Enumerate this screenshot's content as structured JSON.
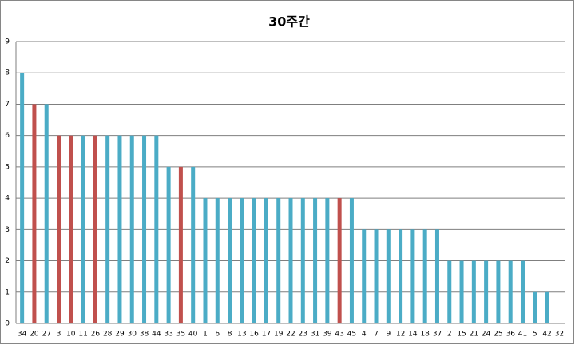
{
  "chart_data": {
    "type": "bar",
    "title": "30주간",
    "categories": [
      "34",
      "20",
      "27",
      "3",
      "10",
      "11",
      "26",
      "28",
      "29",
      "30",
      "38",
      "44",
      "33",
      "35",
      "40",
      "1",
      "6",
      "8",
      "13",
      "16",
      "17",
      "19",
      "22",
      "23",
      "31",
      "39",
      "43",
      "45",
      "4",
      "7",
      "9",
      "12",
      "14",
      "18",
      "37",
      "2",
      "15",
      "21",
      "24",
      "25",
      "36",
      "41",
      "5",
      "42",
      "32"
    ],
    "values": [
      8,
      7,
      7,
      6,
      6,
      6,
      6,
      6,
      6,
      6,
      6,
      6,
      5,
      5,
      5,
      4,
      4,
      4,
      4,
      4,
      4,
      4,
      4,
      4,
      4,
      4,
      4,
      4,
      3,
      3,
      3,
      3,
      3,
      3,
      3,
      2,
      2,
      2,
      2,
      2,
      2,
      2,
      1,
      1,
      0
    ],
    "colors": [
      "#4bacc6",
      "#c0504d",
      "#4bacc6",
      "#c0504d",
      "#c0504d",
      "#4bacc6",
      "#c0504d",
      "#4bacc6",
      "#4bacc6",
      "#4bacc6",
      "#4bacc6",
      "#4bacc6",
      "#4bacc6",
      "#c0504d",
      "#4bacc6",
      "#4bacc6",
      "#4bacc6",
      "#4bacc6",
      "#4bacc6",
      "#4bacc6",
      "#4bacc6",
      "#4bacc6",
      "#4bacc6",
      "#4bacc6",
      "#4bacc6",
      "#4bacc6",
      "#c0504d",
      "#4bacc6",
      "#4bacc6",
      "#4bacc6",
      "#4bacc6",
      "#4bacc6",
      "#4bacc6",
      "#4bacc6",
      "#4bacc6",
      "#4bacc6",
      "#4bacc6",
      "#4bacc6",
      "#4bacc6",
      "#4bacc6",
      "#4bacc6",
      "#4bacc6",
      "#4bacc6",
      "#4bacc6",
      "#4bacc6"
    ],
    "ylim": [
      0,
      9
    ],
    "yticks": [
      0,
      1,
      2,
      3,
      4,
      5,
      6,
      7,
      8,
      9
    ],
    "grid": true
  }
}
